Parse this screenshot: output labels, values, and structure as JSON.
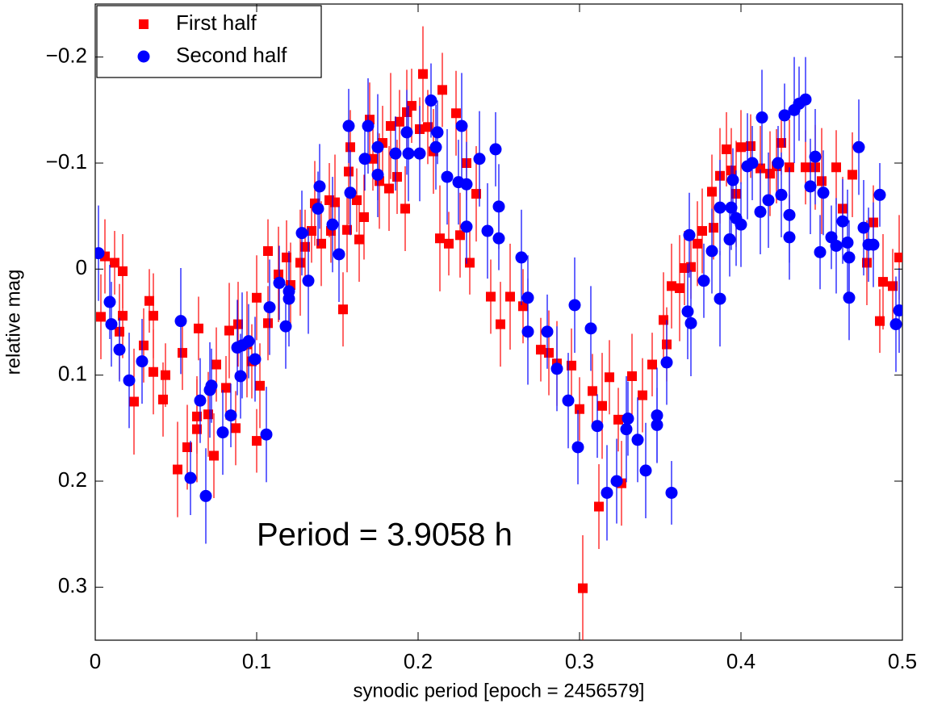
{
  "chart_data": {
    "type": "scatter",
    "xlabel": "synodic period [epoch = 2456579]",
    "ylabel": "relative mag",
    "annotation": "Period = 3.9058 h",
    "xlim": [
      0,
      0.5
    ],
    "xticks": [
      0,
      0.1,
      0.2,
      0.3,
      0.4,
      0.5
    ],
    "ylim": [
      -0.25,
      0.35
    ],
    "y_inverted": true,
    "yticks": [
      {
        "value": -0.2,
        "label": "−0.2"
      },
      {
        "value": -0.1,
        "label": "−0.1"
      },
      0,
      0.1,
      0.2,
      0.3
    ],
    "legend": "upper left",
    "series": [
      {
        "name": "First half",
        "color": "#ff0000",
        "marker": "square",
        "x": [
          0.0035,
          0.006,
          0.012,
          0.015,
          0.017,
          0.017,
          0.024,
          0.03,
          0.0335,
          0.036,
          0.036,
          0.042,
          0.0435,
          0.051,
          0.054,
          0.057,
          0.063,
          0.063,
          0.064,
          0.07,
          0.0735,
          0.075,
          0.081,
          0.083,
          0.087,
          0.0885,
          0.094,
          0.097,
          0.1,
          0.102,
          0.1,
          0.107,
          0.107,
          0.1135,
          0.1185,
          0.121,
          0.127,
          0.13,
          0.134,
          0.136,
          0.14,
          0.145,
          0.146,
          0.1485,
          0.1535,
          0.156,
          0.157,
          0.158,
          0.162,
          0.1635,
          0.1665,
          0.17,
          0.172,
          0.176,
          0.178,
          0.182,
          0.183,
          0.187,
          0.1885,
          0.192,
          0.193,
          0.196,
          0.201,
          0.203,
          0.206,
          0.2095,
          0.2135,
          0.215,
          0.219,
          0.2235,
          0.226,
          0.23,
          0.232,
          0.236,
          0.245,
          0.251,
          0.257,
          0.265,
          0.276,
          0.281,
          0.286,
          0.295,
          0.3,
          0.302,
          0.308,
          0.312,
          0.314,
          0.3185,
          0.324,
          0.326,
          0.3325,
          0.339,
          0.345,
          0.352,
          0.354,
          0.357,
          0.362,
          0.365,
          0.369,
          0.373,
          0.376,
          0.382,
          0.383,
          0.387,
          0.391,
          0.394,
          0.397,
          0.4,
          0.406,
          0.412,
          0.418,
          0.422,
          0.425,
          0.43,
          0.44,
          0.446,
          0.45,
          0.459,
          0.463,
          0.469,
          0.478,
          0.482,
          0.486,
          0.488,
          0.494,
          0.498
        ],
        "values": [
          0.045,
          -0.012,
          -0.006,
          0.059,
          0.002,
          0.044,
          0.125,
          0.072,
          0.03,
          0.044,
          0.097,
          0.123,
          0.1,
          0.189,
          0.079,
          0.168,
          0.151,
          0.139,
          0.056,
          0.137,
          0.176,
          0.09,
          0.112,
          0.058,
          0.15,
          0.052,
          0.071,
          0.087,
          0.162,
          0.11,
          0.027,
          0.051,
          -0.017,
          0.005,
          -0.011,
          0.015,
          -0.006,
          -0.021,
          -0.036,
          -0.062,
          -0.024,
          -0.065,
          -0.036,
          -0.063,
          0.038,
          -0.037,
          -0.092,
          -0.115,
          -0.065,
          -0.028,
          -0.049,
          -0.141,
          -0.104,
          -0.083,
          -0.119,
          -0.076,
          -0.135,
          -0.087,
          -0.139,
          -0.057,
          -0.148,
          -0.154,
          -0.132,
          -0.184,
          -0.134,
          -0.111,
          -0.029,
          -0.169,
          -0.024,
          -0.147,
          -0.032,
          -0.1,
          -0.006,
          -0.071,
          0.026,
          0.052,
          0.026,
          0.035,
          0.076,
          0.079,
          0.089,
          0.091,
          0.132,
          0.301,
          0.115,
          0.224,
          0.129,
          0.102,
          0.142,
          0.202,
          0.101,
          0.119,
          0.09,
          0.048,
          0.071,
          0.016,
          0.018,
          -0.001,
          -0.002,
          -0.024,
          -0.036,
          -0.073,
          -0.039,
          -0.088,
          -0.113,
          -0.093,
          -0.071,
          -0.115,
          -0.116,
          -0.095,
          -0.09,
          -0.097,
          -0.119,
          -0.096,
          -0.096,
          -0.096,
          -0.083,
          -0.096,
          -0.057,
          -0.089,
          -0.006,
          -0.044,
          0.049,
          0.012,
          0.016,
          -0.011
        ],
        "errors": [
          0.04,
          0.035,
          0.03,
          0.045,
          0.035,
          0.04,
          0.05,
          0.035,
          0.03,
          0.04,
          0.04,
          0.035,
          0.03,
          0.045,
          0.035,
          0.04,
          0.05,
          0.035,
          0.03,
          0.04,
          0.04,
          0.035,
          0.03,
          0.045,
          0.035,
          0.04,
          0.05,
          0.035,
          0.03,
          0.04,
          0.04,
          0.035,
          0.03,
          0.045,
          0.035,
          0.04,
          0.05,
          0.035,
          0.03,
          0.04,
          0.04,
          0.035,
          0.03,
          0.045,
          0.035,
          0.04,
          0.05,
          0.035,
          0.03,
          0.04,
          0.04,
          0.035,
          0.03,
          0.045,
          0.035,
          0.04,
          0.05,
          0.035,
          0.03,
          0.04,
          0.04,
          0.035,
          0.03,
          0.045,
          0.035,
          0.04,
          0.05,
          0.035,
          0.03,
          0.04,
          0.04,
          0.035,
          0.03,
          0.045,
          0.035,
          0.04,
          0.05,
          0.035,
          0.03,
          0.04,
          0.04,
          0.035,
          0.03,
          0.05,
          0.035,
          0.04,
          0.05,
          0.035,
          0.03,
          0.04,
          0.04,
          0.035,
          0.03,
          0.045,
          0.035,
          0.04,
          0.05,
          0.035,
          0.03,
          0.04,
          0.04,
          0.035,
          0.03,
          0.045,
          0.035,
          0.04,
          0.05,
          0.035,
          0.03,
          0.04,
          0.04,
          0.035,
          0.03,
          0.045,
          0.035,
          0.04,
          0.05,
          0.035,
          0.03,
          0.04,
          0.04,
          0.035,
          0.03,
          0.045,
          0.035,
          0.04
        ]
      },
      {
        "name": "Second half",
        "color": "#0000ff",
        "marker": "circle",
        "x": [
          0.002,
          0.009,
          0.01,
          0.015,
          0.021,
          0.029,
          0.053,
          0.059,
          0.065,
          0.0685,
          0.071,
          0.072,
          0.079,
          0.084,
          0.088,
          0.09,
          0.091,
          0.095,
          0.099,
          0.106,
          0.108,
          0.114,
          0.118,
          0.12,
          0.12,
          0.128,
          0.132,
          0.138,
          0.139,
          0.147,
          0.151,
          0.157,
          0.158,
          0.167,
          0.169,
          0.175,
          0.175,
          0.186,
          0.193,
          0.194,
          0.201,
          0.208,
          0.211,
          0.212,
          0.218,
          0.225,
          0.227,
          0.23,
          0.23,
          0.238,
          0.243,
          0.248,
          0.25,
          0.25,
          0.264,
          0.268,
          0.268,
          0.28,
          0.286,
          0.293,
          0.297,
          0.299,
          0.307,
          0.311,
          0.317,
          0.323,
          0.329,
          0.33,
          0.336,
          0.341,
          0.348,
          0.348,
          0.354,
          0.357,
          0.367,
          0.368,
          0.369,
          0.377,
          0.382,
          0.387,
          0.387,
          0.393,
          0.394,
          0.395,
          0.397,
          0.4,
          0.404,
          0.407,
          0.412,
          0.413,
          0.417,
          0.423,
          0.425,
          0.427,
          0.43,
          0.43,
          0.433,
          0.436,
          0.44,
          0.443,
          0.446,
          0.449,
          0.451,
          0.456,
          0.459,
          0.463,
          0.466,
          0.467,
          0.467,
          0.473,
          0.476,
          0.479,
          0.482,
          0.486,
          0.496,
          0.498
        ],
        "values": [
          -0.015,
          0.031,
          0.052,
          0.076,
          0.105,
          0.087,
          0.049,
          0.197,
          0.124,
          0.214,
          0.114,
          0.11,
          0.154,
          0.138,
          0.074,
          0.101,
          0.072,
          0.068,
          0.085,
          0.156,
          0.036,
          0.013,
          0.054,
          0.021,
          0.028,
          -0.034,
          0.011,
          -0.057,
          -0.078,
          -0.042,
          -0.014,
          -0.135,
          -0.072,
          -0.104,
          -0.135,
          -0.089,
          -0.115,
          -0.109,
          -0.129,
          -0.109,
          -0.109,
          -0.159,
          -0.115,
          -0.129,
          -0.087,
          -0.082,
          -0.135,
          -0.04,
          -0.08,
          -0.104,
          -0.036,
          -0.113,
          -0.059,
          -0.029,
          -0.011,
          0.027,
          0.059,
          0.059,
          0.094,
          0.124,
          0.034,
          0.168,
          0.056,
          0.148,
          0.211,
          0.2,
          0.151,
          0.141,
          0.161,
          0.19,
          0.138,
          0.147,
          0.088,
          0.211,
          0.04,
          -0.032,
          0.051,
          0.011,
          -0.017,
          0.028,
          -0.058,
          -0.028,
          -0.058,
          -0.084,
          -0.048,
          -0.042,
          -0.097,
          -0.1,
          -0.054,
          -0.143,
          -0.065,
          -0.1,
          -0.07,
          -0.145,
          -0.051,
          -0.03,
          -0.15,
          -0.156,
          -0.16,
          -0.078,
          -0.106,
          -0.016,
          -0.072,
          -0.03,
          -0.022,
          -0.045,
          -0.025,
          -0.011,
          0.027,
          -0.115,
          -0.039,
          -0.023,
          -0.023,
          -0.07,
          0.052,
          0.039
        ],
        "errors": [
          0.045,
          0.035,
          0.04,
          0.03,
          0.045,
          0.04,
          0.05,
          0.035,
          0.04,
          0.045,
          0.045,
          0.035,
          0.04,
          0.03,
          0.045,
          0.04,
          0.05,
          0.035,
          0.04,
          0.045,
          0.045,
          0.035,
          0.04,
          0.03,
          0.045,
          0.04,
          0.05,
          0.035,
          0.04,
          0.045,
          0.045,
          0.035,
          0.04,
          0.03,
          0.045,
          0.04,
          0.05,
          0.035,
          0.04,
          0.045,
          0.045,
          0.035,
          0.04,
          0.03,
          0.045,
          0.04,
          0.05,
          0.035,
          0.04,
          0.045,
          0.045,
          0.035,
          0.04,
          0.03,
          0.045,
          0.04,
          0.05,
          0.035,
          0.04,
          0.045,
          0.045,
          0.035,
          0.04,
          0.03,
          0.045,
          0.04,
          0.05,
          0.035,
          0.04,
          0.045,
          0.045,
          0.035,
          0.04,
          0.03,
          0.045,
          0.04,
          0.05,
          0.035,
          0.04,
          0.045,
          0.045,
          0.035,
          0.04,
          0.03,
          0.045,
          0.04,
          0.05,
          0.035,
          0.04,
          0.045,
          0.045,
          0.035,
          0.04,
          0.03,
          0.045,
          0.04,
          0.05,
          0.035,
          0.04,
          0.045,
          0.045,
          0.035,
          0.04,
          0.03,
          0.045,
          0.04,
          0.05,
          0.035,
          0.04,
          0.045,
          0.045,
          0.035,
          0.04,
          0.03,
          0.045,
          0.04
        ]
      }
    ]
  }
}
